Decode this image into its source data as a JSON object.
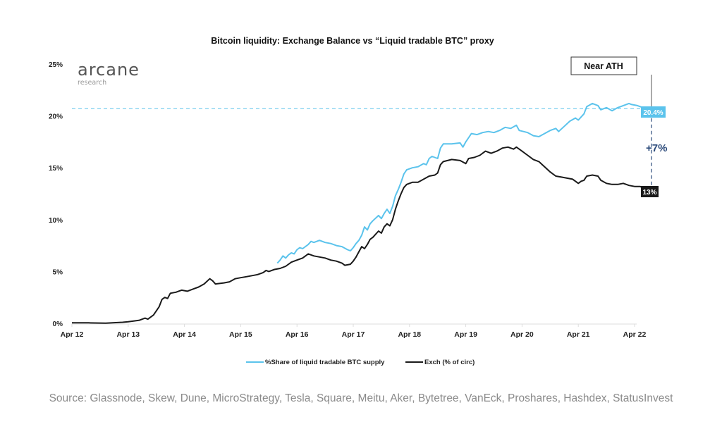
{
  "logo": {
    "brand": "arcane",
    "sub": "research"
  },
  "source_text": "Source: Glassnode, Skew, Dune, MicroStrategy, Tesla, Square, Meitu, Aker, Bytetree, VanEck, Proshares, Hashdex, StatusInvest",
  "colors": {
    "liquid": "#5bc3ec",
    "exch": "#1a1a1a",
    "delta": "#2b4a7a",
    "axis": "#dddddd"
  },
  "chart_data": {
    "type": "line",
    "title": "Bitcoin liquidity: Exchange Balance vs “Liquid tradable BTC” proxy",
    "xlabel": "",
    "ylabel": "",
    "ylim": [
      0,
      25
    ],
    "xlim": [
      0,
      10
    ],
    "yticks": [
      {
        "value": 0,
        "label": "0%"
      },
      {
        "value": 5,
        "label": "5%"
      },
      {
        "value": 10,
        "label": "10%"
      },
      {
        "value": 15,
        "label": "15%"
      },
      {
        "value": 20,
        "label": "20%"
      },
      {
        "value": 25,
        "label": "25%"
      }
    ],
    "xticks": [
      {
        "value": 0,
        "label": "Apr 12"
      },
      {
        "value": 1,
        "label": "Apr 13"
      },
      {
        "value": 2,
        "label": "Apr 14"
      },
      {
        "value": 3,
        "label": "Apr 15"
      },
      {
        "value": 4,
        "label": "Apr 16"
      },
      {
        "value": 5,
        "label": "Apr 17"
      },
      {
        "value": 6,
        "label": "Apr 18"
      },
      {
        "value": 7,
        "label": "Apr 19"
      },
      {
        "value": 8,
        "label": "Apr 20"
      },
      {
        "value": 9,
        "label": "Apr 21"
      },
      {
        "value": 10,
        "label": "Apr 22"
      }
    ],
    "legend_position": "bottom",
    "series": [
      {
        "name": "%Share of liquid tradable BTC supply",
        "key": "liquid",
        "points": [
          [
            3.65,
            5.8
          ],
          [
            3.7,
            6.1
          ],
          [
            3.75,
            6.5
          ],
          [
            3.8,
            6.3
          ],
          [
            3.85,
            6.6
          ],
          [
            3.9,
            6.8
          ],
          [
            3.95,
            6.7
          ],
          [
            4.0,
            7.1
          ],
          [
            4.05,
            7.3
          ],
          [
            4.1,
            7.2
          ],
          [
            4.2,
            7.6
          ],
          [
            4.25,
            7.9
          ],
          [
            4.3,
            7.8
          ],
          [
            4.4,
            8.0
          ],
          [
            4.5,
            7.8
          ],
          [
            4.6,
            7.7
          ],
          [
            4.7,
            7.5
          ],
          [
            4.8,
            7.4
          ],
          [
            4.9,
            7.1
          ],
          [
            4.95,
            7.0
          ],
          [
            5.0,
            7.3
          ],
          [
            5.05,
            7.7
          ],
          [
            5.1,
            8.0
          ],
          [
            5.15,
            8.5
          ],
          [
            5.2,
            9.3
          ],
          [
            5.25,
            9.0
          ],
          [
            5.3,
            9.6
          ],
          [
            5.35,
            9.9
          ],
          [
            5.45,
            10.4
          ],
          [
            5.5,
            10.1
          ],
          [
            5.55,
            10.6
          ],
          [
            5.6,
            11.0
          ],
          [
            5.65,
            10.6
          ],
          [
            5.7,
            11.3
          ],
          [
            5.75,
            12.3
          ],
          [
            5.8,
            12.9
          ],
          [
            5.85,
            13.6
          ],
          [
            5.9,
            14.4
          ],
          [
            5.95,
            14.8
          ],
          [
            6.05,
            15.0
          ],
          [
            6.15,
            15.1
          ],
          [
            6.25,
            15.4
          ],
          [
            6.3,
            15.3
          ],
          [
            6.35,
            15.9
          ],
          [
            6.4,
            16.1
          ],
          [
            6.5,
            15.9
          ],
          [
            6.55,
            16.9
          ],
          [
            6.6,
            17.3
          ],
          [
            6.75,
            17.3
          ],
          [
            6.9,
            17.4
          ],
          [
            6.95,
            17.0
          ],
          [
            7.0,
            17.5
          ],
          [
            7.05,
            17.9
          ],
          [
            7.1,
            18.3
          ],
          [
            7.2,
            18.2
          ],
          [
            7.3,
            18.4
          ],
          [
            7.4,
            18.5
          ],
          [
            7.5,
            18.4
          ],
          [
            7.6,
            18.6
          ],
          [
            7.7,
            18.9
          ],
          [
            7.8,
            18.8
          ],
          [
            7.9,
            19.1
          ],
          [
            7.95,
            18.6
          ],
          [
            8.1,
            18.4
          ],
          [
            8.2,
            18.1
          ],
          [
            8.3,
            18.0
          ],
          [
            8.4,
            18.3
          ],
          [
            8.5,
            18.6
          ],
          [
            8.6,
            18.8
          ],
          [
            8.65,
            18.5
          ],
          [
            8.75,
            19.0
          ],
          [
            8.85,
            19.5
          ],
          [
            8.95,
            19.8
          ],
          [
            9.0,
            19.6
          ],
          [
            9.1,
            20.2
          ],
          [
            9.15,
            20.9
          ],
          [
            9.25,
            21.2
          ],
          [
            9.35,
            21.0
          ],
          [
            9.4,
            20.6
          ],
          [
            9.5,
            20.8
          ],
          [
            9.6,
            20.5
          ],
          [
            9.7,
            20.8
          ],
          [
            9.8,
            21.0
          ],
          [
            9.9,
            21.2
          ],
          [
            9.95,
            21.1
          ],
          [
            10.05,
            21.0
          ],
          [
            10.15,
            20.8
          ],
          [
            10.2,
            20.7
          ],
          [
            10.25,
            20.5
          ],
          [
            10.3,
            20.4
          ]
        ],
        "end_label": "20.4%"
      },
      {
        "name": "Exch (% of circ)",
        "key": "exch",
        "points": [
          [
            0.0,
            0.05
          ],
          [
            0.3,
            0.05
          ],
          [
            0.6,
            0.02
          ],
          [
            0.9,
            0.1
          ],
          [
            1.0,
            0.15
          ],
          [
            1.2,
            0.3
          ],
          [
            1.3,
            0.5
          ],
          [
            1.35,
            0.4
          ],
          [
            1.45,
            0.8
          ],
          [
            1.5,
            1.2
          ],
          [
            1.55,
            1.6
          ],
          [
            1.6,
            2.3
          ],
          [
            1.65,
            2.5
          ],
          [
            1.7,
            2.4
          ],
          [
            1.75,
            2.9
          ],
          [
            1.85,
            3.0
          ],
          [
            1.95,
            3.2
          ],
          [
            2.05,
            3.1
          ],
          [
            2.15,
            3.3
          ],
          [
            2.25,
            3.5
          ],
          [
            2.35,
            3.8
          ],
          [
            2.45,
            4.3
          ],
          [
            2.5,
            4.1
          ],
          [
            2.55,
            3.8
          ],
          [
            2.7,
            3.9
          ],
          [
            2.8,
            4.0
          ],
          [
            2.9,
            4.3
          ],
          [
            3.0,
            4.4
          ],
          [
            3.1,
            4.5
          ],
          [
            3.2,
            4.6
          ],
          [
            3.3,
            4.7
          ],
          [
            3.4,
            4.9
          ],
          [
            3.45,
            5.1
          ],
          [
            3.5,
            5.0
          ],
          [
            3.6,
            5.2
          ],
          [
            3.7,
            5.3
          ],
          [
            3.8,
            5.5
          ],
          [
            3.9,
            5.9
          ],
          [
            4.0,
            6.1
          ],
          [
            4.1,
            6.3
          ],
          [
            4.2,
            6.7
          ],
          [
            4.3,
            6.5
          ],
          [
            4.4,
            6.4
          ],
          [
            4.5,
            6.3
          ],
          [
            4.6,
            6.1
          ],
          [
            4.7,
            6.0
          ],
          [
            4.8,
            5.8
          ],
          [
            4.85,
            5.6
          ],
          [
            4.95,
            5.7
          ],
          [
            5.0,
            6.0
          ],
          [
            5.05,
            6.4
          ],
          [
            5.1,
            6.9
          ],
          [
            5.15,
            7.4
          ],
          [
            5.2,
            7.2
          ],
          [
            5.25,
            7.6
          ],
          [
            5.3,
            8.1
          ],
          [
            5.35,
            8.3
          ],
          [
            5.45,
            8.9
          ],
          [
            5.5,
            8.7
          ],
          [
            5.55,
            9.3
          ],
          [
            5.6,
            9.6
          ],
          [
            5.65,
            9.4
          ],
          [
            5.7,
            10.0
          ],
          [
            5.75,
            11.0
          ],
          [
            5.8,
            11.8
          ],
          [
            5.85,
            12.5
          ],
          [
            5.9,
            13.1
          ],
          [
            5.95,
            13.4
          ],
          [
            6.05,
            13.6
          ],
          [
            6.15,
            13.6
          ],
          [
            6.25,
            13.9
          ],
          [
            6.35,
            14.2
          ],
          [
            6.45,
            14.3
          ],
          [
            6.5,
            14.5
          ],
          [
            6.55,
            15.3
          ],
          [
            6.6,
            15.6
          ],
          [
            6.75,
            15.8
          ],
          [
            6.9,
            15.7
          ],
          [
            7.0,
            15.4
          ],
          [
            7.05,
            15.9
          ],
          [
            7.15,
            16.0
          ],
          [
            7.25,
            16.2
          ],
          [
            7.35,
            16.6
          ],
          [
            7.45,
            16.4
          ],
          [
            7.55,
            16.6
          ],
          [
            7.65,
            16.9
          ],
          [
            7.75,
            17.0
          ],
          [
            7.85,
            16.8
          ],
          [
            7.9,
            17.0
          ],
          [
            8.0,
            16.6
          ],
          [
            8.1,
            16.2
          ],
          [
            8.2,
            15.8
          ],
          [
            8.3,
            15.6
          ],
          [
            8.4,
            15.1
          ],
          [
            8.5,
            14.6
          ],
          [
            8.6,
            14.2
          ],
          [
            8.7,
            14.1
          ],
          [
            8.8,
            14.0
          ],
          [
            8.9,
            13.9
          ],
          [
            9.0,
            13.5
          ],
          [
            9.05,
            13.7
          ],
          [
            9.1,
            13.8
          ],
          [
            9.15,
            14.2
          ],
          [
            9.25,
            14.3
          ],
          [
            9.35,
            14.2
          ],
          [
            9.4,
            13.8
          ],
          [
            9.5,
            13.5
          ],
          [
            9.6,
            13.4
          ],
          [
            9.7,
            13.4
          ],
          [
            9.8,
            13.5
          ],
          [
            9.9,
            13.3
          ],
          [
            10.0,
            13.2
          ],
          [
            10.1,
            13.2
          ],
          [
            10.2,
            12.9
          ],
          [
            10.3,
            12.7
          ]
        ],
        "end_label": "13%"
      }
    ],
    "annotations": {
      "near_ath_label": "Near ATH",
      "delta_label": "+7%",
      "ath_reference_value": 20.7
    }
  }
}
